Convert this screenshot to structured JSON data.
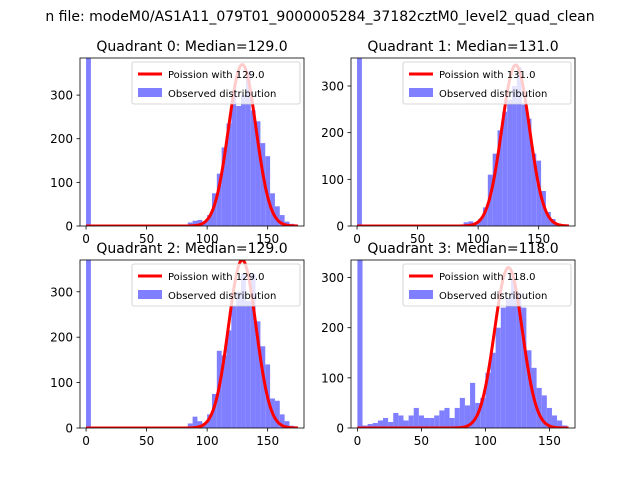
{
  "figure": {
    "suptitle": "n file: modeM0/AS1A11_079T01_9000005284_37182cztM0_level2_quad_clean"
  },
  "chart_data": [
    {
      "type": "bar",
      "title": "Quadrant 0: Median=129.0",
      "xlim": [
        -5,
        180
      ],
      "ylim": [
        0,
        385
      ],
      "xticks": [
        0,
        50,
        100,
        150
      ],
      "yticks": [
        0,
        100,
        200,
        300
      ],
      "bin_width": 4,
      "hist": [
        [
          0,
          500
        ],
        [
          84,
          8
        ],
        [
          88,
          12
        ],
        [
          92,
          14
        ],
        [
          96,
          10
        ],
        [
          100,
          25
        ],
        [
          104,
          75
        ],
        [
          108,
          120
        ],
        [
          112,
          180
        ],
        [
          116,
          235
        ],
        [
          120,
          310
        ],
        [
          124,
          275
        ],
        [
          128,
          300
        ],
        [
          132,
          355
        ],
        [
          136,
          265
        ],
        [
          140,
          240
        ],
        [
          144,
          190
        ],
        [
          148,
          160
        ],
        [
          152,
          75
        ],
        [
          156,
          45
        ],
        [
          160,
          25
        ],
        [
          164,
          10
        ],
        [
          168,
          5
        ]
      ],
      "poisson_mean": 129.0,
      "poisson_peak": 370,
      "legend": [
        "Poission with 129.0",
        "Observed distribution"
      ],
      "colors": {
        "curve": "#ff0000",
        "hist": "#7f7fff"
      }
    },
    {
      "type": "bar",
      "title": "Quadrant 1: Median=131.0",
      "xlim": [
        -5,
        180
      ],
      "ylim": [
        0,
        360
      ],
      "xticks": [
        0,
        50,
        100,
        150
      ],
      "yticks": [
        0,
        100,
        200,
        300
      ],
      "bin_width": 4,
      "hist": [
        [
          0,
          500
        ],
        [
          88,
          8
        ],
        [
          92,
          10
        ],
        [
          96,
          5
        ],
        [
          100,
          15
        ],
        [
          104,
          40
        ],
        [
          108,
          110
        ],
        [
          112,
          155
        ],
        [
          116,
          205
        ],
        [
          120,
          245
        ],
        [
          124,
          270
        ],
        [
          128,
          300
        ],
        [
          132,
          340
        ],
        [
          136,
          260
        ],
        [
          140,
          230
        ],
        [
          144,
          155
        ],
        [
          148,
          140
        ],
        [
          152,
          75
        ],
        [
          156,
          30
        ],
        [
          160,
          15
        ],
        [
          164,
          5
        ]
      ],
      "poisson_mean": 131.0,
      "poisson_peak": 345,
      "legend": [
        "Poission with 131.0",
        "Observed distribution"
      ],
      "colors": {
        "curve": "#ff0000",
        "hist": "#7f7fff"
      }
    },
    {
      "type": "bar",
      "title": "Quadrant 2: Median=129.0",
      "xlim": [
        -5,
        180
      ],
      "ylim": [
        0,
        370
      ],
      "xticks": [
        0,
        50,
        100,
        150
      ],
      "yticks": [
        0,
        100,
        200,
        300
      ],
      "bin_width": 4,
      "hist": [
        [
          0,
          500
        ],
        [
          84,
          10
        ],
        [
          88,
          25
        ],
        [
          92,
          15
        ],
        [
          96,
          10
        ],
        [
          100,
          30
        ],
        [
          104,
          75
        ],
        [
          108,
          170
        ],
        [
          112,
          160
        ],
        [
          116,
          215
        ],
        [
          120,
          270
        ],
        [
          124,
          300
        ],
        [
          128,
          340
        ],
        [
          132,
          280
        ],
        [
          136,
          340
        ],
        [
          140,
          235
        ],
        [
          144,
          180
        ],
        [
          148,
          140
        ],
        [
          152,
          65
        ],
        [
          156,
          60
        ],
        [
          160,
          30
        ],
        [
          164,
          15
        ],
        [
          168,
          5
        ]
      ],
      "poisson_mean": 129.0,
      "poisson_peak": 370,
      "legend": [
        "Poission with 129.0",
        "Observed distribution"
      ],
      "colors": {
        "curve": "#ff0000",
        "hist": "#7f7fff"
      }
    },
    {
      "type": "bar",
      "title": "Quadrant 3: Median=118.0",
      "xlim": [
        -5,
        170
      ],
      "ylim": [
        0,
        335
      ],
      "xticks": [
        0,
        50,
        100,
        150
      ],
      "yticks": [
        0,
        100,
        200,
        300
      ],
      "bin_width": 4,
      "hist": [
        [
          0,
          500
        ],
        [
          4,
          5
        ],
        [
          8,
          8
        ],
        [
          12,
          10
        ],
        [
          16,
          15
        ],
        [
          20,
          20
        ],
        [
          24,
          12
        ],
        [
          28,
          30
        ],
        [
          32,
          25
        ],
        [
          36,
          15
        ],
        [
          40,
          25
        ],
        [
          44,
          40
        ],
        [
          48,
          25
        ],
        [
          52,
          20
        ],
        [
          56,
          20
        ],
        [
          60,
          25
        ],
        [
          64,
          35
        ],
        [
          68,
          40
        ],
        [
          72,
          20
        ],
        [
          76,
          40
        ],
        [
          80,
          60
        ],
        [
          84,
          45
        ],
        [
          88,
          90
        ],
        [
          92,
          50
        ],
        [
          96,
          60
        ],
        [
          100,
          110
        ],
        [
          104,
          150
        ],
        [
          108,
          200
        ],
        [
          112,
          240
        ],
        [
          116,
          260
        ],
        [
          120,
          300
        ],
        [
          124,
          270
        ],
        [
          128,
          240
        ],
        [
          132,
          155
        ],
        [
          136,
          120
        ],
        [
          140,
          80
        ],
        [
          144,
          65
        ],
        [
          148,
          40
        ],
        [
          152,
          25
        ],
        [
          156,
          15
        ],
        [
          160,
          5
        ]
      ],
      "poisson_mean": 118.0,
      "poisson_peak": 320,
      "legend": [
        "Poission with 118.0",
        "Observed distribution"
      ],
      "colors": {
        "curve": "#ff0000",
        "hist": "#7f7fff"
      }
    }
  ]
}
